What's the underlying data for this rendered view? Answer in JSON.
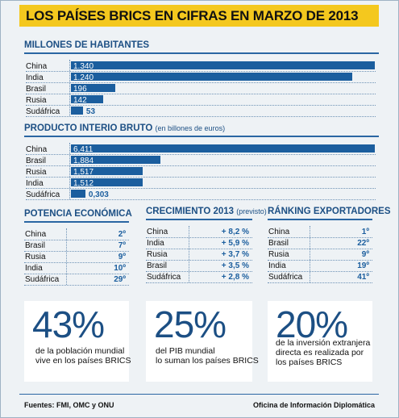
{
  "title": "LOS PAÍSES BRICS EN CIFRAS EN MARZO DE 2013",
  "chart_data": [
    {
      "type": "bar",
      "title": "MILLONES DE HABITANTES",
      "subtitle": "",
      "categories": [
        "China",
        "India",
        "Brasil",
        "Rusia",
        "Sudáfrica"
      ],
      "values": [
        1340,
        1240,
        196,
        142,
        53
      ],
      "labels": [
        "1.340",
        "1.240",
        "196",
        "142",
        "53"
      ]
    },
    {
      "type": "bar",
      "title": "PRODUCTO INTERIO BRUTO",
      "subtitle": "(en billones de euros)",
      "categories": [
        "China",
        "Brasil",
        "Rusia",
        "India",
        "Sudáfrica"
      ],
      "values": [
        6.411,
        1.884,
        1.517,
        1.512,
        0.303
      ],
      "labels": [
        "6,411",
        "1,884",
        "1,517",
        "1,512",
        "0,303"
      ]
    },
    {
      "type": "table",
      "title": "POTENCIA ECONÓMICA",
      "subtitle": "",
      "categories": [
        "China",
        "Brasil",
        "Rusia",
        "India",
        "Sudáfrica"
      ],
      "labels": [
        "2º",
        "7º",
        "9º",
        "10º",
        "29º"
      ]
    },
    {
      "type": "table",
      "title": "CRECIMIENTO 2013",
      "subtitle": "(previsto)",
      "categories": [
        "China",
        "India",
        "Rusia",
        "Brasil",
        "Sudáfrica"
      ],
      "labels": [
        "+ 8,2 %",
        "+ 5,9 %",
        "+ 3,7 %",
        "+ 3,5 %",
        "+ 2,8 %"
      ]
    },
    {
      "type": "table",
      "title": "RÁNKING EXPORTADORES",
      "subtitle": "",
      "categories": [
        "China",
        "Brasil",
        "Rusia",
        "India",
        "Sudáfrica"
      ],
      "labels": [
        "1º",
        "22º",
        "9º",
        "19º",
        "41º"
      ]
    }
  ],
  "cards": [
    {
      "big": "43%",
      "lines": [
        "de la población mundial",
        "vive en los países BRICS"
      ]
    },
    {
      "big": "25%",
      "lines": [
        "del PIB mundial",
        "lo suman los países BRICS"
      ]
    },
    {
      "big": "20%",
      "lines": [
        "de la inversión extranjera",
        "directa es realizada por",
        "los países BRICS"
      ]
    }
  ],
  "footer": {
    "sources": "Fuentes: FMI, OMC y ONU",
    "credit": "Oficina de Información Diplomática"
  },
  "colors": {
    "accent": "#f4c81e",
    "bar": "#1b5e9e",
    "heading": "#1c4f84",
    "background": "#eef2f5"
  }
}
